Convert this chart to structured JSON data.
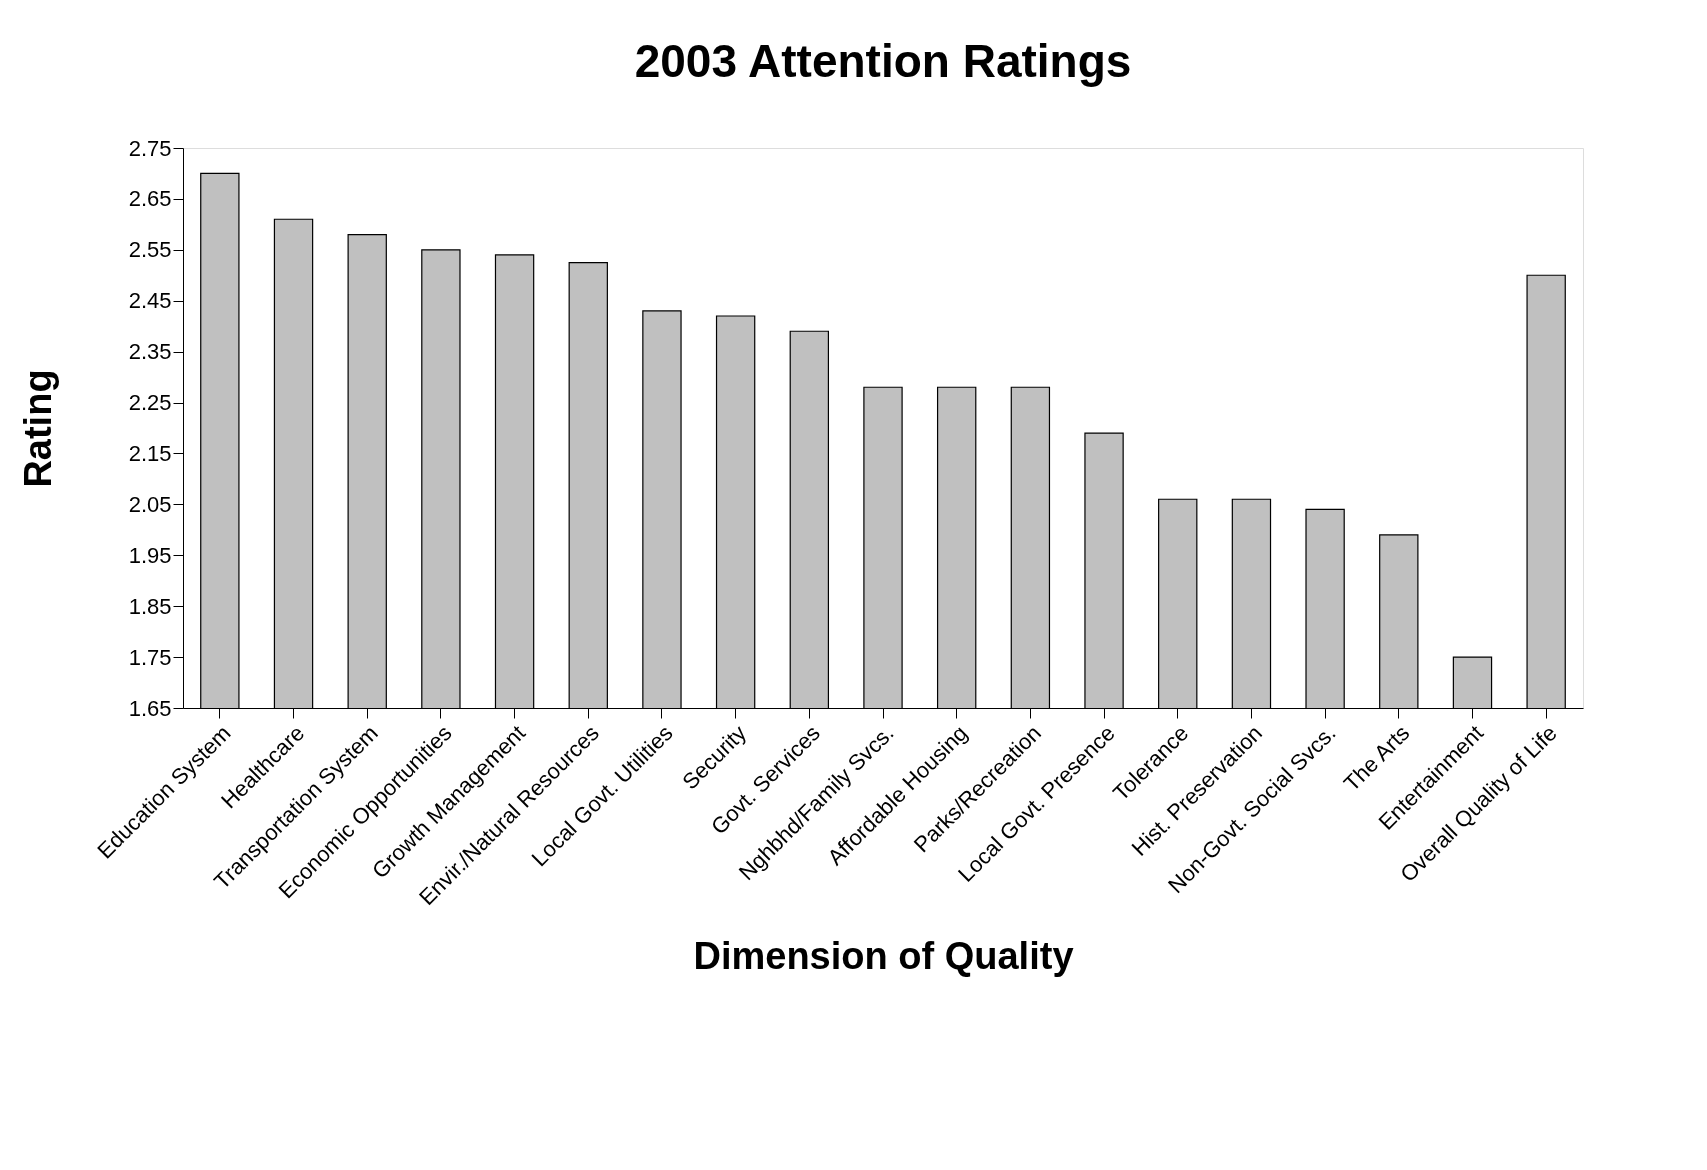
{
  "chart_data": {
    "type": "bar",
    "title": "2003 Attention Ratings",
    "xlabel": "Dimension of Quality",
    "ylabel": "Rating",
    "categories": [
      "Education System",
      "Healthcare",
      "Transportation System",
      "Economic Opportunities",
      "Growth Management",
      "Envir./Natural Resources",
      "Local Govt. Utilities",
      "Security",
      "Govt. Services",
      "Nghbhd/Family Svcs.",
      "Affordable Housing",
      "Parks/Recreation",
      "Local Govt. Presence",
      "Tolerance",
      "Hist. Preservation",
      "Non-Govt. Social Svcs.",
      "The Arts",
      "Entertainment",
      "Overall Quality of Life"
    ],
    "values": [
      2.7,
      2.61,
      2.58,
      2.55,
      2.54,
      2.525,
      2.43,
      2.42,
      2.39,
      2.28,
      2.28,
      2.28,
      2.19,
      2.06,
      2.06,
      2.04,
      1.99,
      1.75,
      2.5
    ],
    "color": "#c0c0c0",
    "ylim": [
      1.65,
      2.75
    ],
    "yticks": [
      1.65,
      1.75,
      1.85,
      1.95,
      2.05,
      2.15,
      2.25,
      2.35,
      2.45,
      2.55,
      2.65,
      2.75
    ],
    "grid": false,
    "legend": false
  }
}
